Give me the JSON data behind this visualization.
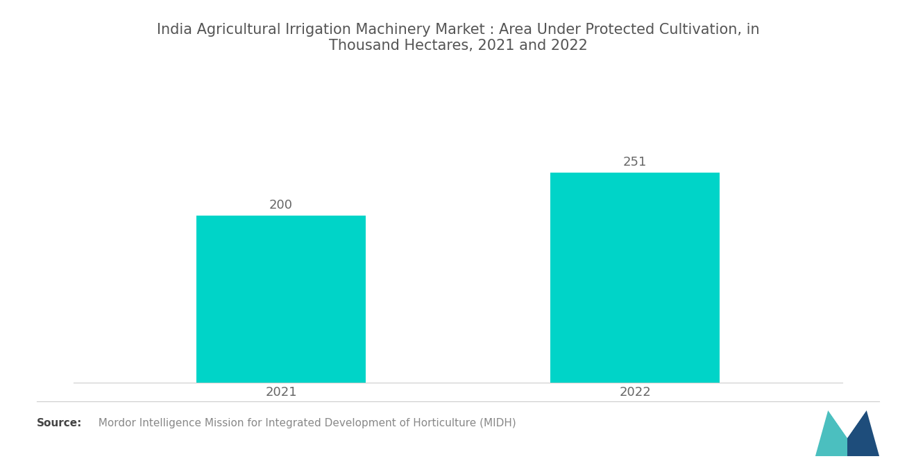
{
  "title": "India Agricultural Irrigation Machinery Market : Area Under Protected Cultivation, in\nThousand Hectares, 2021 and 2022",
  "categories": [
    "2021",
    "2022"
  ],
  "values": [
    200,
    251
  ],
  "bar_color": "#00D4C8",
  "background_color": "#FFFFFF",
  "title_fontsize": 15,
  "label_fontsize": 13,
  "value_fontsize": 13,
  "source_bold": "Source:",
  "source_text": "  Mordor Intelligence Mission for Integrated Development of Horticulture (MIDH)",
  "source_fontsize": 11,
  "bar_width": 0.22,
  "ylim": [
    0,
    320
  ],
  "xlim": [
    0.0,
    1.0
  ],
  "x_positions": [
    0.27,
    0.73
  ],
  "title_color": "#555555",
  "tick_color": "#666666",
  "value_color": "#666666",
  "source_color": "#888888",
  "source_bold_color": "#444444",
  "spine_color": "#CCCCCC",
  "separator_color": "#CCCCCC"
}
